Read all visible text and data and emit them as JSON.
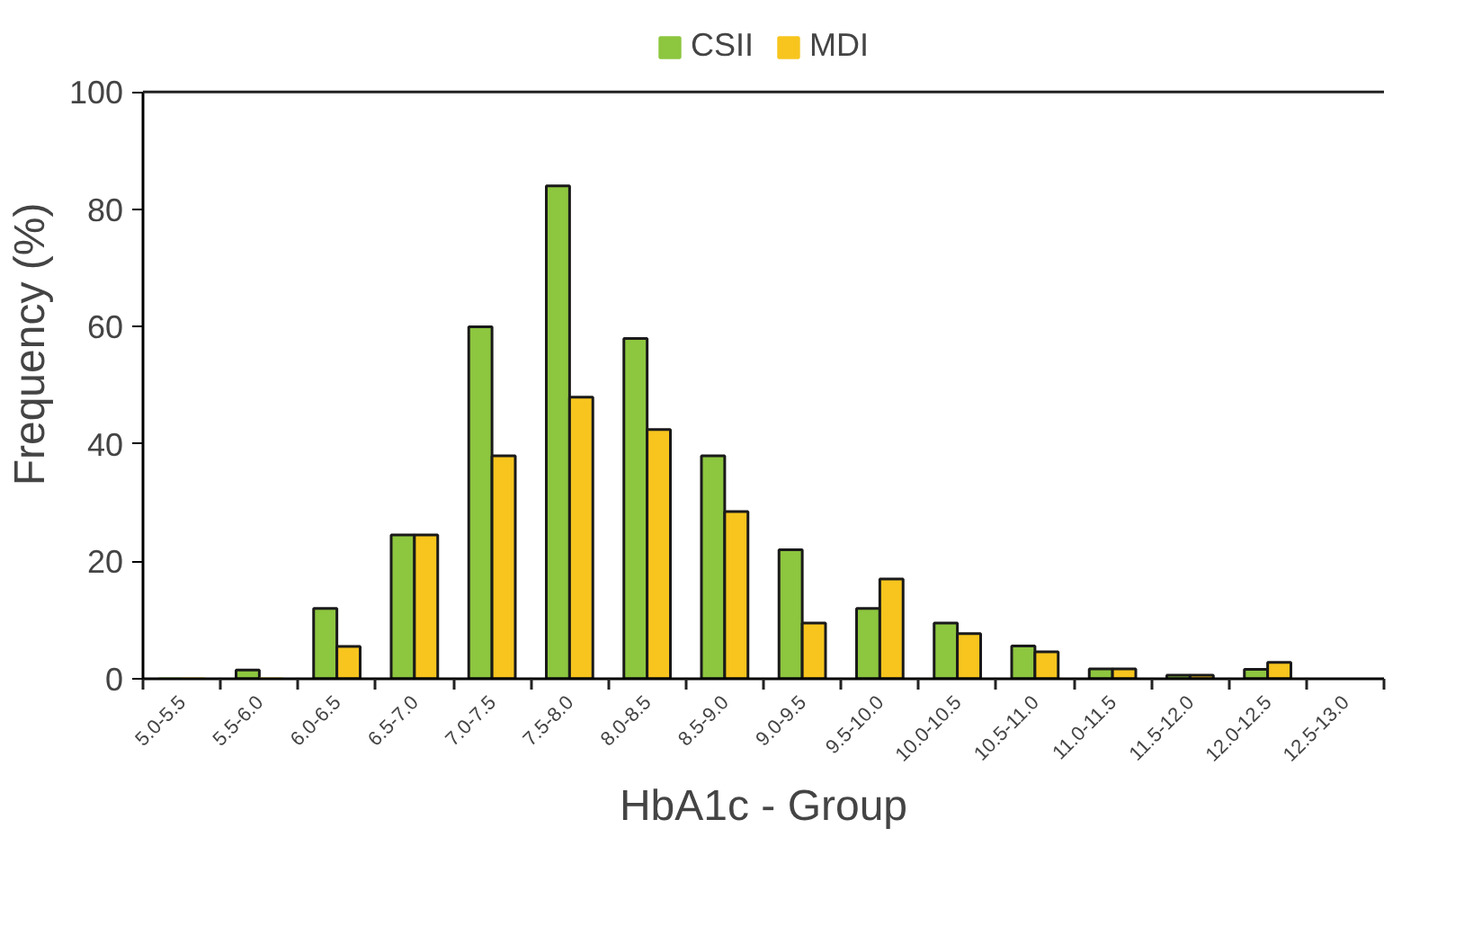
{
  "chart_data": {
    "type": "bar",
    "xlabel": "HbA1c - Group",
    "ylabel": "Frequency (%)",
    "categories": [
      "5.0-5.5",
      "5.5-6.0",
      "6.0-6.5",
      "6.5-7.0",
      "7.0-7.5",
      "7.5-8.0",
      "8.0-8.5",
      "8.5-9.0",
      "9.0-9.5",
      "9.5-10.0",
      "10.0-10.5",
      "10.5-11.0",
      "11.0-11.5",
      "11.5-12.0",
      "12.0-12.5",
      "12.5-13.0"
    ],
    "series": [
      {
        "name": "CSII",
        "color": "#8dc63f",
        "values": [
          0,
          1.5,
          12,
          24.5,
          60,
          84,
          58,
          38,
          22,
          12,
          9.5,
          5.6,
          1.7,
          0.6,
          1.6,
          null
        ]
      },
      {
        "name": "MDI",
        "color": "#f7c51e",
        "values": [
          0,
          0,
          5.5,
          24.5,
          38,
          48,
          42.5,
          28.5,
          9.5,
          17,
          7.7,
          4.6,
          1.7,
          0.6,
          2.8,
          null
        ]
      }
    ],
    "ylim": [
      0,
      100
    ],
    "yticks": [
      0,
      20,
      40,
      60,
      80,
      100
    ],
    "grid": false,
    "legend": "top"
  }
}
